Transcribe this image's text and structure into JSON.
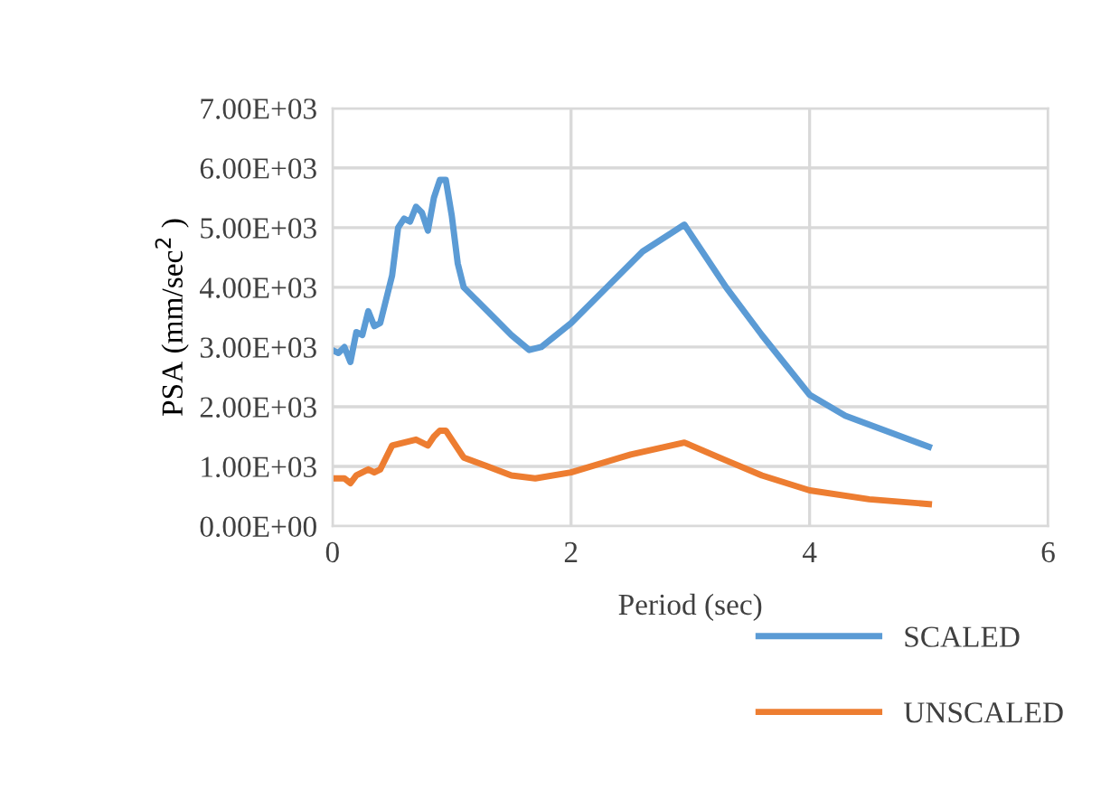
{
  "chart_data": {
    "type": "line",
    "xlabel": "Period (sec)",
    "ylabel": "PSA (mm/sec$^{2}$ )",
    "xlim": [
      0,
      6
    ],
    "xticks": [
      0,
      2,
      4,
      6
    ],
    "ylim": [
      0,
      7000
    ],
    "yticks": [
      {
        "value": 0,
        "label": "0.00E+00"
      },
      {
        "value": 1000,
        "label": "1.00E+03"
      },
      {
        "value": 2000,
        "label": "2.00E+03"
      },
      {
        "value": 3000,
        "label": "3.00E+03"
      },
      {
        "value": 4000,
        "label": "4.00E+03"
      },
      {
        "value": 5000,
        "label": "5.00E+03"
      },
      {
        "value": 6000,
        "label": "6.00E+03"
      },
      {
        "value": 7000,
        "label": "7.00E+03"
      }
    ],
    "grid": true,
    "legend": "bottom right",
    "marker": "none",
    "line_style": "solid",
    "series": [
      {
        "name": "SCALED",
        "color": "#5b9bd5",
        "x": [
          0,
          0.05,
          0.1,
          0.15,
          0.2,
          0.25,
          0.3,
          0.35,
          0.4,
          0.5,
          0.55,
          0.6,
          0.65,
          0.7,
          0.75,
          0.8,
          0.85,
          0.9,
          0.95,
          1.0,
          1.05,
          1.1,
          1.3,
          1.5,
          1.65,
          1.75,
          2.0,
          2.3,
          2.6,
          2.95,
          3.0,
          3.3,
          3.6,
          4.0,
          4.3,
          5.0
        ],
        "values": [
          2950,
          2900,
          3000,
          2750,
          3250,
          3200,
          3600,
          3350,
          3400,
          4200,
          5000,
          5150,
          5100,
          5350,
          5250,
          4950,
          5500,
          5800,
          5800,
          5200,
          4400,
          4000,
          3600,
          3200,
          2950,
          3000,
          3400,
          4000,
          4600,
          5050,
          4900,
          4000,
          3200,
          2200,
          1850,
          1330
        ]
      },
      {
        "name": "UNSCALED",
        "color": "#ed7d31",
        "x": [
          0,
          0.1,
          0.15,
          0.2,
          0.3,
          0.35,
          0.4,
          0.5,
          0.6,
          0.7,
          0.8,
          0.85,
          0.9,
          0.95,
          1.0,
          1.1,
          1.3,
          1.5,
          1.7,
          2.0,
          2.5,
          2.95,
          3.3,
          3.6,
          4.0,
          4.5,
          5.0
        ],
        "values": [
          800,
          800,
          720,
          850,
          950,
          900,
          950,
          1350,
          1400,
          1450,
          1350,
          1500,
          1600,
          1600,
          1450,
          1150,
          1000,
          850,
          800,
          900,
          1200,
          1400,
          1100,
          850,
          600,
          450,
          370
        ]
      }
    ]
  }
}
